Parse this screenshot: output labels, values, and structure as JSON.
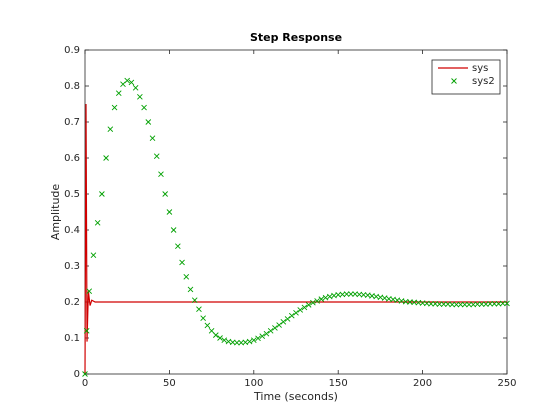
{
  "chart_data": {
    "type": "line",
    "title": "Step Response",
    "xlabel": "Time (seconds)",
    "ylabel": "Amplitude",
    "xlim": [
      0,
      250
    ],
    "ylim": [
      0,
      0.9
    ],
    "xticks": [
      0,
      50,
      100,
      150,
      200,
      250
    ],
    "yticks": [
      0,
      0.1,
      0.2,
      0.3,
      0.4,
      0.5,
      0.6,
      0.7,
      0.8,
      0.9
    ],
    "legend": "northeast",
    "series": [
      {
        "name": "sys",
        "color": "#d00000",
        "marker": "none",
        "x": [
          0,
          0.6,
          1.2,
          2,
          3,
          4,
          6,
          250
        ],
        "values": [
          0,
          0.75,
          0.09,
          0.23,
          0.19,
          0.205,
          0.2,
          0.2
        ]
      },
      {
        "name": "sys2",
        "color": "#00a000",
        "marker": "x",
        "x": [
          0,
          1,
          2.5,
          5,
          7.5,
          10,
          12.5,
          15,
          17.5,
          20,
          22.5,
          25,
          27.5,
          30,
          32.5,
          35,
          37.5,
          40,
          42.5,
          45,
          47.5,
          50,
          52.5,
          55,
          57.5,
          60,
          62.5,
          65,
          67.5,
          70,
          72.5,
          75,
          77.5,
          80,
          82.5,
          85,
          87.5,
          90,
          92.5,
          95,
          97.5,
          100,
          102.5,
          105,
          107.5,
          110,
          112.5,
          115,
          117.5,
          120,
          122.5,
          125,
          127.5,
          130,
          132.5,
          135,
          137.5,
          140,
          142.5,
          145,
          147.5,
          150,
          152.5,
          155,
          157.5,
          160,
          162.5,
          165,
          167.5,
          170,
          172.5,
          175,
          177.5,
          180,
          182.5,
          185,
          187.5,
          190,
          192.5,
          195,
          197.5,
          200,
          202.5,
          205,
          207.5,
          210,
          212.5,
          215,
          217.5,
          220,
          222.5,
          225,
          227.5,
          230,
          232.5,
          235,
          237.5,
          240,
          242.5,
          245,
          247.5,
          250
        ],
        "values": [
          0,
          0.12,
          0.23,
          0.33,
          0.42,
          0.5,
          0.6,
          0.68,
          0.74,
          0.78,
          0.805,
          0.815,
          0.81,
          0.795,
          0.77,
          0.74,
          0.7,
          0.655,
          0.605,
          0.555,
          0.5,
          0.45,
          0.4,
          0.355,
          0.31,
          0.27,
          0.235,
          0.205,
          0.18,
          0.155,
          0.135,
          0.12,
          0.108,
          0.1,
          0.094,
          0.09,
          0.088,
          0.087,
          0.087,
          0.088,
          0.09,
          0.094,
          0.099,
          0.105,
          0.112,
          0.12,
          0.128,
          0.136,
          0.145,
          0.153,
          0.162,
          0.17,
          0.178,
          0.185,
          0.192,
          0.198,
          0.203,
          0.208,
          0.212,
          0.215,
          0.218,
          0.22,
          0.221,
          0.222,
          0.222,
          0.222,
          0.221,
          0.22,
          0.219,
          0.217,
          0.215,
          0.213,
          0.211,
          0.209,
          0.207,
          0.205,
          0.203,
          0.201,
          0.2,
          0.199,
          0.198,
          0.197,
          0.196,
          0.195,
          0.195,
          0.194,
          0.194,
          0.194,
          0.193,
          0.193,
          0.193,
          0.193,
          0.193,
          0.193,
          0.194,
          0.194,
          0.194,
          0.195,
          0.195,
          0.195,
          0.196,
          0.196
        ]
      }
    ]
  }
}
